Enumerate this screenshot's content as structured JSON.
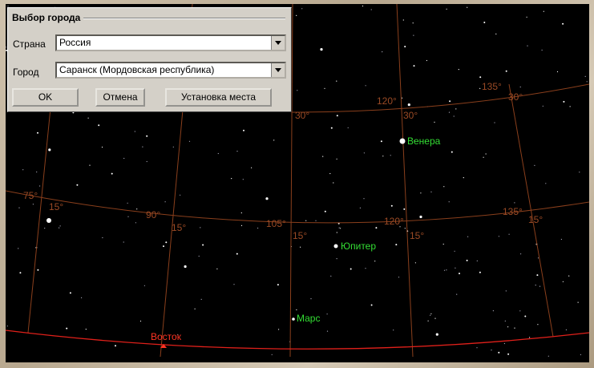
{
  "dialog": {
    "title": "Выбор города",
    "country_label": "Страна",
    "country": "Россия",
    "city_label": "Город",
    "city": "Саранск (Мордовская республика)",
    "buttons": [
      "OK",
      "Отмена",
      "Установка места"
    ]
  },
  "sky": {
    "objects": [
      "Венера",
      "Юпитер",
      "Марс"
    ],
    "horizon_label": "Восток",
    "grid_labels": [
      "30°",
      "120°",
      "30°",
      "135°",
      "30°",
      "75°",
      "15°",
      "90°",
      "15°",
      "105°",
      "15°",
      "120°",
      "15°",
      "135°",
      "15°"
    ]
  }
}
